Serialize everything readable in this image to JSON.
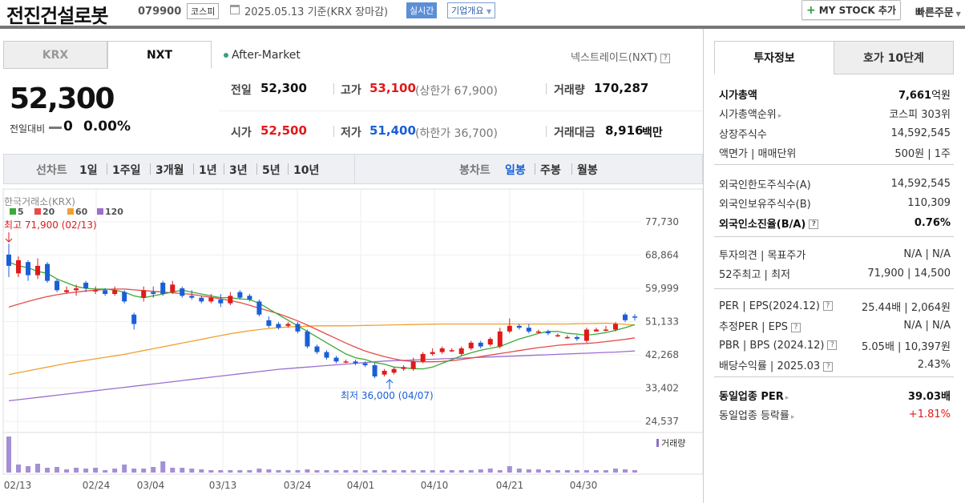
{
  "header": {
    "title": "전진건설로봇",
    "code": "079900",
    "market": "코스피",
    "date": "2025.05.13 기준(KRX 장마감)",
    "live": "실시간",
    "company_info": "기업개요",
    "mystock": "MY STOCK 추가",
    "quick_order": "빠른주문"
  },
  "tabs": {
    "krx": "KRX",
    "nxt": "NXT"
  },
  "after_market": "After-Market",
  "nextrade": "넥스트레이드(NXT)",
  "quote": {
    "price": "52,300",
    "change_label": "전일대비",
    "change_value": "0",
    "change_pct": "0.00%",
    "prev_label": "전일",
    "prev": "52,300",
    "high_label": "고가",
    "high": "53,100",
    "upper_limit": "(상한가 67,900)",
    "volume_label": "거래량",
    "volume": "170,287",
    "open_label": "시가",
    "open": "52,500",
    "low_label": "저가",
    "low": "51,400",
    "lower_limit": "(하한가 36,700)",
    "amount_label": "거래대금",
    "amount": "8,916",
    "amount_unit": "백만"
  },
  "period": {
    "line_label": "선차트",
    "line_items": [
      "1일",
      "1주일",
      "3개월",
      "1년",
      "3년",
      "5년",
      "10년"
    ],
    "candle_label": "봉차트",
    "candle_items": [
      "일봉",
      "주봉",
      "월봉"
    ]
  },
  "chart_meta": {
    "source": "한국거래소(KRX)",
    "ma": [
      "5",
      "20",
      "60",
      "120"
    ],
    "high_annot": "최고 71,900 (02/13)",
    "low_annot": "최저 36,000 (04/07)",
    "volume_label": "거래량",
    "colors": {
      "up": "#e01a1a",
      "down": "#1a5fd6",
      "ma5": "#3aaa3a",
      "ma20": "#e84a4a",
      "ma60": "#f0a030",
      "ma120": "#9a6fd0"
    }
  },
  "chart_data": {
    "type": "candlestick",
    "y_ticks": [
      "77,730",
      "68,864",
      "59,999",
      "51,133",
      "42,268",
      "33,402",
      "24,537"
    ],
    "x_ticks": [
      "02/13",
      "02/24",
      "03/04",
      "03/13",
      "03/24",
      "04/01",
      "04/10",
      "04/21",
      "04/30"
    ],
    "ylim": [
      24537,
      77730
    ],
    "candles": [
      [
        69000,
        66000,
        71900,
        63000
      ],
      [
        64000,
        67500,
        68500,
        63000
      ],
      [
        67000,
        63500,
        67500,
        62000
      ],
      [
        63500,
        66000,
        68000,
        62500
      ],
      [
        66500,
        62000,
        67000,
        61500
      ],
      [
        62000,
        59500,
        62500,
        59000
      ],
      [
        59000,
        59500,
        60500,
        58500
      ],
      [
        59500,
        60000,
        61000,
        58000
      ],
      [
        61500,
        60000,
        62000,
        59000
      ],
      [
        59500,
        59500,
        60500,
        58500
      ],
      [
        59500,
        58500,
        60000,
        58000
      ],
      [
        58500,
        59500,
        60500,
        58000
      ],
      [
        59000,
        56500,
        59500,
        56000
      ],
      [
        53000,
        50500,
        53500,
        49000
      ],
      [
        57500,
        59500,
        60500,
        56500
      ],
      [
        59000,
        58500,
        60500,
        57500
      ],
      [
        61500,
        58500,
        62000,
        58000
      ],
      [
        59000,
        61000,
        62000,
        58500
      ],
      [
        60000,
        58000,
        60500,
        57500
      ],
      [
        58000,
        57500,
        59500,
        57000
      ],
      [
        57500,
        56500,
        58000,
        56000
      ],
      [
        56500,
        57500,
        58500,
        56000
      ],
      [
        57000,
        56000,
        58500,
        55000
      ],
      [
        56000,
        58000,
        59000,
        55500
      ],
      [
        59000,
        57500,
        59500,
        57000
      ],
      [
        58000,
        57000,
        58500,
        56500
      ],
      [
        56500,
        53000,
        57000,
        52500
      ],
      [
        51500,
        50000,
        52500,
        49500
      ],
      [
        50500,
        49500,
        51000,
        49000
      ],
      [
        50000,
        50500,
        51000,
        49500
      ],
      [
        50500,
        48500,
        51000,
        48000
      ],
      [
        48500,
        44500,
        49000,
        44000
      ],
      [
        44500,
        43000,
        45000,
        42500
      ],
      [
        43000,
        41500,
        43500,
        41000
      ],
      [
        41500,
        40500,
        42000,
        40000
      ],
      [
        40500,
        40500,
        41000,
        40000
      ],
      [
        40500,
        40000,
        41000,
        39500
      ],
      [
        40000,
        39500,
        40500,
        39000
      ],
      [
        39500,
        36500,
        40000,
        36000
      ],
      [
        37000,
        38000,
        38500,
        36500
      ],
      [
        37500,
        38500,
        39000,
        37000
      ],
      [
        38500,
        39000,
        39500,
        38000
      ],
      [
        38500,
        40500,
        41500,
        38000
      ],
      [
        40500,
        42500,
        43000,
        40000
      ],
      [
        42500,
        43000,
        44000,
        42000
      ],
      [
        43000,
        44000,
        44500,
        42500
      ],
      [
        43500,
        43500,
        44000,
        43000
      ],
      [
        42500,
        44000,
        44500,
        42000
      ],
      [
        44000,
        45500,
        46000,
        43500
      ],
      [
        45500,
        44500,
        46000,
        44000
      ],
      [
        45000,
        46500,
        47000,
        44500
      ],
      [
        44500,
        48500,
        49500,
        44000
      ],
      [
        48500,
        50000,
        52000,
        48000
      ],
      [
        50000,
        49500,
        50500,
        49000
      ],
      [
        49500,
        48500,
        50500,
        48000
      ],
      [
        48500,
        48500,
        49000,
        48000
      ],
      [
        48500,
        48000,
        49000,
        47500
      ],
      [
        47500,
        47500,
        48000,
        47000
      ],
      [
        47000,
        47000,
        47500,
        46500
      ],
      [
        47000,
        46500,
        47500,
        46000
      ],
      [
        46000,
        49000,
        49500,
        45500
      ],
      [
        48500,
        49000,
        49500,
        48500
      ],
      [
        49000,
        49000,
        50000,
        48500
      ],
      [
        49000,
        50500,
        51000,
        48500
      ],
      [
        53000,
        51500,
        53500,
        51000
      ],
      [
        52500,
        52300,
        53100,
        51400
      ]
    ],
    "volumes": [
      4.5,
      1.0,
      0.8,
      1.1,
      0.6,
      0.7,
      0.4,
      0.6,
      0.5,
      0.6,
      0.3,
      0.5,
      1.0,
      0.5,
      0.5,
      0.7,
      1.4,
      0.6,
      0.6,
      0.5,
      0.4,
      0.3,
      0.3,
      0.3,
      0.3,
      0.3,
      0.5,
      0.4,
      0.3,
      0.3,
      0.3,
      0.4,
      0.3,
      0.3,
      0.3,
      0.3,
      0.3,
      0.3,
      0.3,
      0.3,
      0.3,
      0.3,
      0.3,
      0.3,
      0.3,
      0.3,
      0.3,
      0.3,
      0.3,
      0.4,
      0.5,
      0.3,
      0.8,
      0.5,
      0.4,
      0.4,
      0.3,
      0.3,
      0.3,
      0.3,
      0.3,
      0.3,
      0.3,
      0.5,
      0.4,
      0.3
    ],
    "ma5": [
      67000,
      66000,
      65500,
      64500,
      64000,
      62500,
      61500,
      60500,
      60000,
      59800,
      59800,
      59500,
      59000,
      58000,
      57500,
      58000,
      58500,
      59000,
      59500,
      59000,
      58500,
      58000,
      57500,
      57500,
      57200,
      57000,
      56000,
      54500,
      53000,
      51500,
      50000,
      48500,
      47000,
      45500,
      44000,
      42500,
      41500,
      41000,
      40200,
      39800,
      39000,
      38800,
      38600,
      38500,
      39000,
      40000,
      41000,
      42000,
      42800,
      43500,
      44000,
      44500,
      45500,
      46500,
      47200,
      48000,
      48500,
      48500,
      48000,
      47800,
      47500,
      47800,
      48200,
      48800,
      49500,
      50300
    ],
    "ma20": [
      55000,
      55800,
      56500,
      57200,
      57800,
      58300,
      58700,
      59000,
      59300,
      59500,
      59700,
      59800,
      59800,
      59600,
      59400,
      59200,
      59000,
      58800,
      58600,
      58400,
      58000,
      57600,
      57200,
      56700,
      56200,
      55500,
      54700,
      54000,
      53200,
      52300,
      51300,
      50200,
      49000,
      47800,
      46600,
      45400,
      44300,
      43300,
      42500,
      41800,
      41200,
      40700,
      40500,
      40400,
      40400,
      40500,
      40700,
      41000,
      41400,
      41800,
      42200,
      42600,
      43000,
      43400,
      43800,
      44200,
      44500,
      44800,
      45000,
      45200,
      45300,
      45500,
      45800,
      46100,
      46400,
      46800
    ],
    "ma60": [
      37000,
      37500,
      38000,
      38500,
      39000,
      39500,
      40000,
      40400,
      40800,
      41200,
      41600,
      42000,
      42400,
      42900,
      43400,
      43900,
      44400,
      44900,
      45400,
      45900,
      46400,
      46900,
      47400,
      47900,
      48300,
      48700,
      49000,
      49300,
      49500,
      49700,
      49800,
      49900,
      50000,
      50000,
      50000,
      50000,
      50050,
      50100,
      50150,
      50200,
      50250,
      50300,
      50350,
      50400,
      50450,
      50500,
      50500,
      50500,
      50500,
      50500,
      50500,
      50500,
      50500,
      50500,
      50500,
      50500,
      50500,
      50500,
      50500,
      50550,
      50600,
      50650,
      50700,
      50600,
      50400,
      50200
    ],
    "ma120": [
      30000,
      30300,
      30600,
      30900,
      31200,
      31500,
      31800,
      32100,
      32400,
      32700,
      33000,
      33300,
      33600,
      33900,
      34200,
      34500,
      34800,
      35100,
      35400,
      35700,
      36000,
      36300,
      36600,
      36900,
      37200,
      37500,
      37800,
      38100,
      38400,
      38600,
      38800,
      39000,
      39200,
      39400,
      39600,
      39800,
      40000,
      40200,
      40400,
      40600,
      40700,
      40800,
      40900,
      41000,
      41100,
      41200,
      41300,
      41400,
      41500,
      41600,
      41700,
      41800,
      41900,
      42000,
      42100,
      42200,
      42300,
      42400,
      42500,
      42600,
      42700,
      42800,
      42900,
      43000,
      43150,
      43300
    ]
  },
  "right": {
    "tabs": [
      "투자정보",
      "호가 10단계"
    ],
    "sections": [
      [
        {
          "k": "시가총액",
          "v": "7,661",
          "unit": "억원",
          "bold": true
        },
        {
          "k": "시가총액순위",
          "v": "코스피 303위",
          "arrow": true
        },
        {
          "k": "상장주식수",
          "v": "14,592,545"
        },
        {
          "k": "액면가 | 매매단위",
          "v": "500원 | 1주"
        }
      ],
      [
        {
          "k": "외국인한도주식수(A)",
          "v": "14,592,545"
        },
        {
          "k": "외국인보유주식수(B)",
          "v": "110,309"
        },
        {
          "k": "외국인소진율(B/A)",
          "v": "0.76%",
          "bold": true,
          "q": true
        }
      ],
      [
        {
          "k": "투자의견 | 목표주가",
          "v": "N/A | N/A"
        },
        {
          "k": "52주최고 | 최저",
          "v": "71,900 | 14,500"
        }
      ],
      [
        {
          "k": "PER | EPS(2024.12)",
          "v": "25.44배 | 2,064원",
          "q": true
        },
        {
          "k": "추정PER | EPS",
          "v": "N/A | N/A",
          "q": true
        },
        {
          "k": "PBR | BPS (2024.12)",
          "v": "5.05배 | 10,397원",
          "q": true
        },
        {
          "k": "배당수익률 | 2025.03",
          "v": "2.43%",
          "q": true
        }
      ],
      [
        {
          "k": "동일업종 PER",
          "v": "39.03배",
          "bold": true,
          "arrow": true
        },
        {
          "k": "동일업종 등락률",
          "v": "+1.81%",
          "red": true,
          "arrow": true
        }
      ]
    ]
  }
}
